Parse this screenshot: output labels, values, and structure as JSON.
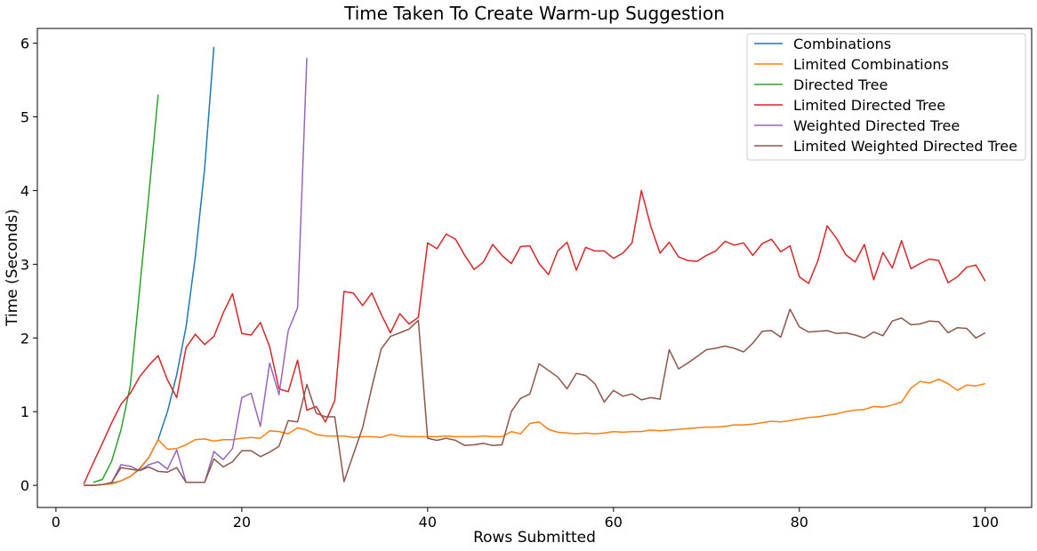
{
  "chart_data": {
    "type": "line",
    "title": "Time Taken To Create Warm-up Suggestion",
    "xlabel": "Rows Submitted",
    "ylabel": "Time (Seconds)",
    "xlim": [
      -2,
      105
    ],
    "ylim": [
      -0.3,
      6.2
    ],
    "xticks": [
      0,
      20,
      40,
      60,
      80,
      100
    ],
    "yticks": [
      0,
      1,
      2,
      3,
      4,
      5,
      6
    ],
    "grid": false,
    "legend_position": "top-right",
    "series": [
      {
        "name": "Combinations",
        "color": "#1f77b4",
        "x": [
          3,
          4,
          5,
          6,
          7,
          8,
          9,
          10,
          11,
          12,
          13,
          14,
          15,
          16,
          17
        ],
        "y": [
          0.0,
          0.0,
          0.01,
          0.03,
          0.06,
          0.12,
          0.22,
          0.38,
          0.62,
          1.0,
          1.5,
          2.15,
          3.1,
          4.3,
          5.95
        ]
      },
      {
        "name": "Limited Combinations",
        "color": "#ff7f0e",
        "x": [
          3,
          4,
          5,
          6,
          7,
          8,
          9,
          10,
          11,
          12,
          13,
          14,
          15,
          16,
          17,
          18,
          19,
          20,
          21,
          22,
          23,
          24,
          25,
          26,
          27,
          28,
          29,
          30,
          31,
          32,
          33,
          34,
          35,
          36,
          37,
          38,
          39,
          40,
          41,
          42,
          43,
          44,
          45,
          46,
          47,
          48,
          49,
          50,
          51,
          52,
          53,
          54,
          55,
          56,
          57,
          58,
          59,
          60,
          61,
          62,
          63,
          64,
          65,
          66,
          67,
          68,
          69,
          70,
          71,
          72,
          73,
          74,
          75,
          76,
          77,
          78,
          79,
          80,
          81,
          82,
          83,
          84,
          85,
          86,
          87,
          88,
          89,
          90,
          91,
          92,
          93,
          94,
          95,
          96,
          97,
          98,
          99,
          100
        ],
        "y": [
          0.0,
          0.0,
          0.01,
          0.02,
          0.06,
          0.12,
          0.23,
          0.38,
          0.62,
          0.49,
          0.5,
          0.55,
          0.62,
          0.63,
          0.6,
          0.62,
          0.62,
          0.64,
          0.65,
          0.64,
          0.74,
          0.73,
          0.7,
          0.78,
          0.75,
          0.69,
          0.67,
          0.67,
          0.67,
          0.65,
          0.66,
          0.66,
          0.65,
          0.69,
          0.67,
          0.66,
          0.66,
          0.66,
          0.66,
          0.67,
          0.66,
          0.66,
          0.66,
          0.67,
          0.66,
          0.66,
          0.73,
          0.7,
          0.84,
          0.86,
          0.76,
          0.72,
          0.71,
          0.7,
          0.71,
          0.7,
          0.71,
          0.73,
          0.72,
          0.73,
          0.73,
          0.75,
          0.74,
          0.75,
          0.76,
          0.77,
          0.78,
          0.79,
          0.79,
          0.8,
          0.82,
          0.82,
          0.83,
          0.85,
          0.87,
          0.86,
          0.88,
          0.9,
          0.92,
          0.93,
          0.95,
          0.97,
          1.0,
          1.02,
          1.03,
          1.07,
          1.06,
          1.09,
          1.13,
          1.32,
          1.41,
          1.39,
          1.44,
          1.38,
          1.29,
          1.36,
          1.35,
          1.38
        ]
      },
      {
        "name": "Directed Tree",
        "color": "#2ca02c",
        "x": [
          4,
          5,
          6,
          7,
          8,
          9,
          10,
          11
        ],
        "y": [
          0.04,
          0.08,
          0.33,
          0.75,
          1.35,
          2.65,
          3.95,
          5.3
        ]
      },
      {
        "name": "Limited Directed Tree",
        "color": "#d62728",
        "x": [
          3,
          4,
          5,
          6,
          7,
          8,
          9,
          10,
          11,
          12,
          13,
          14,
          15,
          16,
          17,
          18,
          19,
          20,
          21,
          22,
          23,
          24,
          25,
          26,
          27,
          28,
          29,
          30,
          31,
          32,
          33,
          34,
          35,
          36,
          37,
          38,
          39,
          40,
          41,
          42,
          43,
          44,
          45,
          46,
          47,
          48,
          49,
          50,
          51,
          52,
          53,
          54,
          55,
          56,
          57,
          58,
          59,
          60,
          61,
          62,
          63,
          64,
          65,
          66,
          67,
          68,
          69,
          70,
          71,
          72,
          73,
          74,
          75,
          76,
          77,
          78,
          79,
          80,
          81,
          82,
          83,
          84,
          85,
          86,
          87,
          88,
          89,
          90,
          91,
          92,
          93,
          94,
          95,
          96,
          97,
          98,
          99,
          100
        ],
        "y": [
          0.02,
          0.3,
          0.57,
          0.85,
          1.1,
          1.25,
          1.47,
          1.63,
          1.76,
          1.43,
          1.19,
          1.87,
          2.05,
          1.91,
          2.02,
          2.34,
          2.6,
          2.06,
          2.04,
          2.21,
          1.88,
          1.31,
          1.27,
          1.7,
          1.02,
          1.07,
          0.86,
          1.15,
          2.63,
          2.61,
          2.44,
          2.61,
          2.32,
          2.07,
          2.33,
          2.19,
          2.28,
          3.29,
          3.21,
          3.41,
          3.34,
          3.12,
          2.93,
          3.03,
          3.27,
          3.12,
          3.01,
          3.24,
          3.25,
          3.01,
          2.86,
          3.18,
          3.3,
          2.92,
          3.23,
          3.18,
          3.18,
          3.08,
          3.15,
          3.29,
          4.0,
          3.52,
          3.15,
          3.3,
          3.1,
          3.05,
          3.04,
          3.12,
          3.18,
          3.31,
          3.26,
          3.29,
          3.12,
          3.28,
          3.34,
          3.17,
          3.25,
          2.83,
          2.74,
          3.05,
          3.52,
          3.35,
          3.13,
          3.03,
          3.27,
          2.79,
          3.16,
          2.95,
          3.32,
          2.94,
          3.01,
          3.07,
          3.05,
          2.75,
          2.83,
          2.96,
          2.99,
          2.77
        ]
      },
      {
        "name": "Weighted Directed Tree",
        "color": "#9467bd",
        "x": [
          6,
          7,
          8,
          9,
          10,
          11,
          12,
          13,
          14,
          15,
          16,
          17,
          18,
          19,
          20,
          21,
          22,
          23,
          24,
          25,
          26,
          27
        ],
        "y": [
          0.04,
          0.28,
          0.26,
          0.2,
          0.28,
          0.32,
          0.22,
          0.48,
          0.04,
          0.04,
          0.04,
          0.46,
          0.35,
          0.5,
          1.19,
          1.25,
          0.8,
          1.66,
          1.23,
          2.1,
          2.41,
          5.8
        ]
      },
      {
        "name": "Limited Weighted Directed Tree",
        "color": "#8c564b",
        "x": [
          3,
          4,
          5,
          6,
          7,
          8,
          9,
          10,
          11,
          12,
          13,
          14,
          15,
          16,
          17,
          18,
          19,
          20,
          21,
          22,
          23,
          24,
          25,
          26,
          27,
          28,
          29,
          30,
          31,
          32,
          33,
          34,
          35,
          36,
          37,
          38,
          39,
          40,
          41,
          42,
          43,
          44,
          45,
          46,
          47,
          48,
          49,
          50,
          51,
          52,
          53,
          54,
          55,
          56,
          57,
          58,
          59,
          60,
          61,
          62,
          63,
          64,
          65,
          66,
          67,
          68,
          69,
          70,
          71,
          72,
          73,
          74,
          75,
          76,
          77,
          78,
          79,
          80,
          81,
          82,
          83,
          84,
          85,
          86,
          87,
          88,
          89,
          90,
          91,
          92,
          93,
          94,
          95,
          96,
          97,
          98,
          99,
          100
        ],
        "y": [
          0.0,
          0.0,
          0.01,
          0.04,
          0.24,
          0.22,
          0.2,
          0.25,
          0.19,
          0.18,
          0.24,
          0.04,
          0.04,
          0.04,
          0.36,
          0.25,
          0.32,
          0.47,
          0.47,
          0.39,
          0.45,
          0.53,
          0.88,
          0.86,
          1.37,
          0.98,
          0.93,
          0.93,
          0.05,
          0.42,
          0.78,
          1.33,
          1.85,
          2.02,
          2.07,
          2.12,
          2.24,
          0.64,
          0.61,
          0.64,
          0.61,
          0.54,
          0.55,
          0.57,
          0.54,
          0.55,
          1.0,
          1.18,
          1.24,
          1.65,
          1.56,
          1.47,
          1.31,
          1.52,
          1.49,
          1.38,
          1.13,
          1.29,
          1.21,
          1.24,
          1.16,
          1.19,
          1.17,
          1.84,
          1.58,
          1.66,
          1.75,
          1.84,
          1.86,
          1.89,
          1.86,
          1.81,
          1.93,
          2.09,
          2.1,
          2.01,
          2.39,
          2.15,
          2.08,
          2.09,
          2.1,
          2.06,
          2.07,
          2.04,
          2.0,
          2.08,
          2.03,
          2.23,
          2.27,
          2.18,
          2.19,
          2.23,
          2.22,
          2.07,
          2.14,
          2.13,
          2.0,
          2.07
        ]
      }
    ]
  }
}
